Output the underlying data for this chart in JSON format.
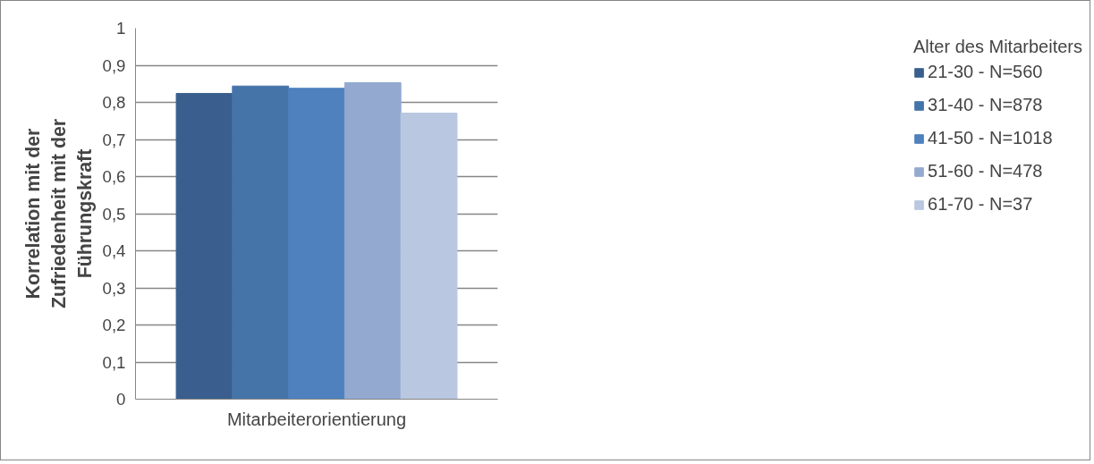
{
  "chart_data": {
    "type": "bar",
    "xlabel": "Mitarbeiterorientierung",
    "ylabel": "Korrelation mit der Zufriedenheit mit der Führungskraft",
    "legend_title": "Alter des Mitarbeiters",
    "categories": [
      null
    ],
    "series": [
      {
        "name": "21-30 - N=560",
        "color": "#3a5f8e",
        "values": [
          0.824
        ]
      },
      {
        "name": "31-40 - N=878",
        "color": "#4574a9",
        "values": [
          0.844
        ]
      },
      {
        "name": "41-50 - N=1018",
        "color": "#4e81bd",
        "values": [
          0.838
        ]
      },
      {
        "name": "51-60 - N=478",
        "color": "#93a9d0",
        "values": [
          0.853
        ]
      },
      {
        "name": "61-70 - N=37",
        "color": "#b9c7e0",
        "values": [
          0.771
        ]
      }
    ],
    "ylim": [
      0,
      1
    ],
    "yticks": [
      {
        "value": 0,
        "label": "0"
      },
      {
        "value": 0.1,
        "label": "0,1"
      },
      {
        "value": 0.2,
        "label": "0,2"
      },
      {
        "value": 0.3,
        "label": "0,3"
      },
      {
        "value": 0.4,
        "label": "0,4"
      },
      {
        "value": 0.5,
        "label": "0,5"
      },
      {
        "value": 0.6,
        "label": "0,6"
      },
      {
        "value": 0.7,
        "label": "0,7"
      },
      {
        "value": 0.8,
        "label": "0,8"
      },
      {
        "value": 0.9,
        "label": "0,9"
      },
      {
        "value": 1,
        "label": "1"
      }
    ],
    "grid": "y",
    "legend": "right"
  }
}
